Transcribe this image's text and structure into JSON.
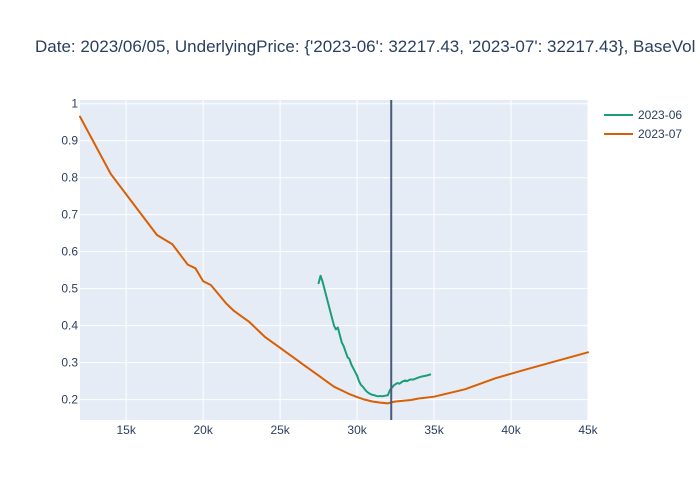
{
  "chart_data": {
    "type": "line",
    "title": "Date:  2023/06/05, UnderlyingPrice: {'2023-06': 32217.43, '2023-07': 32217.43}, BaseVol",
    "xlabel": "",
    "ylabel": "",
    "xlim": [
      12000,
      45000
    ],
    "ylim": [
      0.145,
      1.01
    ],
    "x_ticks": [
      15000,
      20000,
      25000,
      30000,
      35000,
      40000,
      45000
    ],
    "x_tick_labels": [
      "15k",
      "20k",
      "25k",
      "30k",
      "35k",
      "40k",
      "45k"
    ],
    "y_ticks": [
      0.2,
      0.3,
      0.4,
      0.5,
      0.6,
      0.7,
      0.8,
      0.9,
      1
    ],
    "y_tick_labels": [
      "0.2",
      "0.3",
      "0.4",
      "0.5",
      "0.6",
      "0.7",
      "0.8",
      "0.9",
      "1"
    ],
    "grid": true,
    "legend": "top-right",
    "vertical_line": {
      "x": 32217.43,
      "color": "#4a5a7a"
    },
    "plot_background": "#e5ecf6",
    "series": [
      {
        "name": "2023-06",
        "color": "#1b9e77",
        "x": [
          27500,
          27625,
          27750,
          27875,
          28000,
          28125,
          28250,
          28375,
          28500,
          28625,
          28750,
          28875,
          29000,
          29125,
          29250,
          29375,
          29500,
          29625,
          29750,
          29875,
          30000,
          30125,
          30250,
          30375,
          30500,
          30625,
          30750,
          30875,
          31000,
          31125,
          31250,
          31375,
          31500,
          31625,
          31750,
          31875,
          32000,
          32125,
          32250,
          32375,
          32500,
          32625,
          32750,
          32875,
          33000,
          33125,
          33250,
          33375,
          33500,
          33625,
          33750,
          33875,
          34000,
          34250,
          34500,
          34750
        ],
        "y": [
          0.515,
          0.535,
          0.52,
          0.5,
          0.48,
          0.46,
          0.44,
          0.42,
          0.4,
          0.39,
          0.395,
          0.375,
          0.355,
          0.345,
          0.33,
          0.315,
          0.31,
          0.295,
          0.285,
          0.275,
          0.265,
          0.25,
          0.24,
          0.235,
          0.228,
          0.222,
          0.218,
          0.215,
          0.213,
          0.212,
          0.21,
          0.209,
          0.21,
          0.209,
          0.21,
          0.211,
          0.212,
          0.225,
          0.232,
          0.238,
          0.242,
          0.245,
          0.243,
          0.247,
          0.25,
          0.252,
          0.25,
          0.253,
          0.255,
          0.254,
          0.256,
          0.258,
          0.26,
          0.263,
          0.265,
          0.268
        ]
      },
      {
        "name": "2023-07",
        "color": "#d95f02",
        "x": [
          12000,
          14000,
          17000,
          18000,
          19000,
          19500,
          20000,
          20500,
          21000,
          21500,
          22000,
          22500,
          23000,
          23500,
          24000,
          24500,
          25000,
          25500,
          26000,
          26500,
          27000,
          27500,
          28000,
          28500,
          29000,
          29500,
          30000,
          30500,
          31000,
          31500,
          32000,
          32250,
          32500,
          33000,
          33500,
          34000,
          35000,
          37000,
          39000,
          41000,
          43000,
          45000
        ],
        "y": [
          0.965,
          0.81,
          0.645,
          0.62,
          0.565,
          0.555,
          0.52,
          0.51,
          0.485,
          0.46,
          0.44,
          0.425,
          0.41,
          0.39,
          0.37,
          0.355,
          0.34,
          0.325,
          0.31,
          0.295,
          0.28,
          0.265,
          0.25,
          0.235,
          0.225,
          0.215,
          0.207,
          0.2,
          0.195,
          0.192,
          0.19,
          0.193,
          0.195,
          0.197,
          0.199,
          0.203,
          0.208,
          0.228,
          0.258,
          0.282,
          0.305,
          0.328
        ]
      }
    ]
  }
}
